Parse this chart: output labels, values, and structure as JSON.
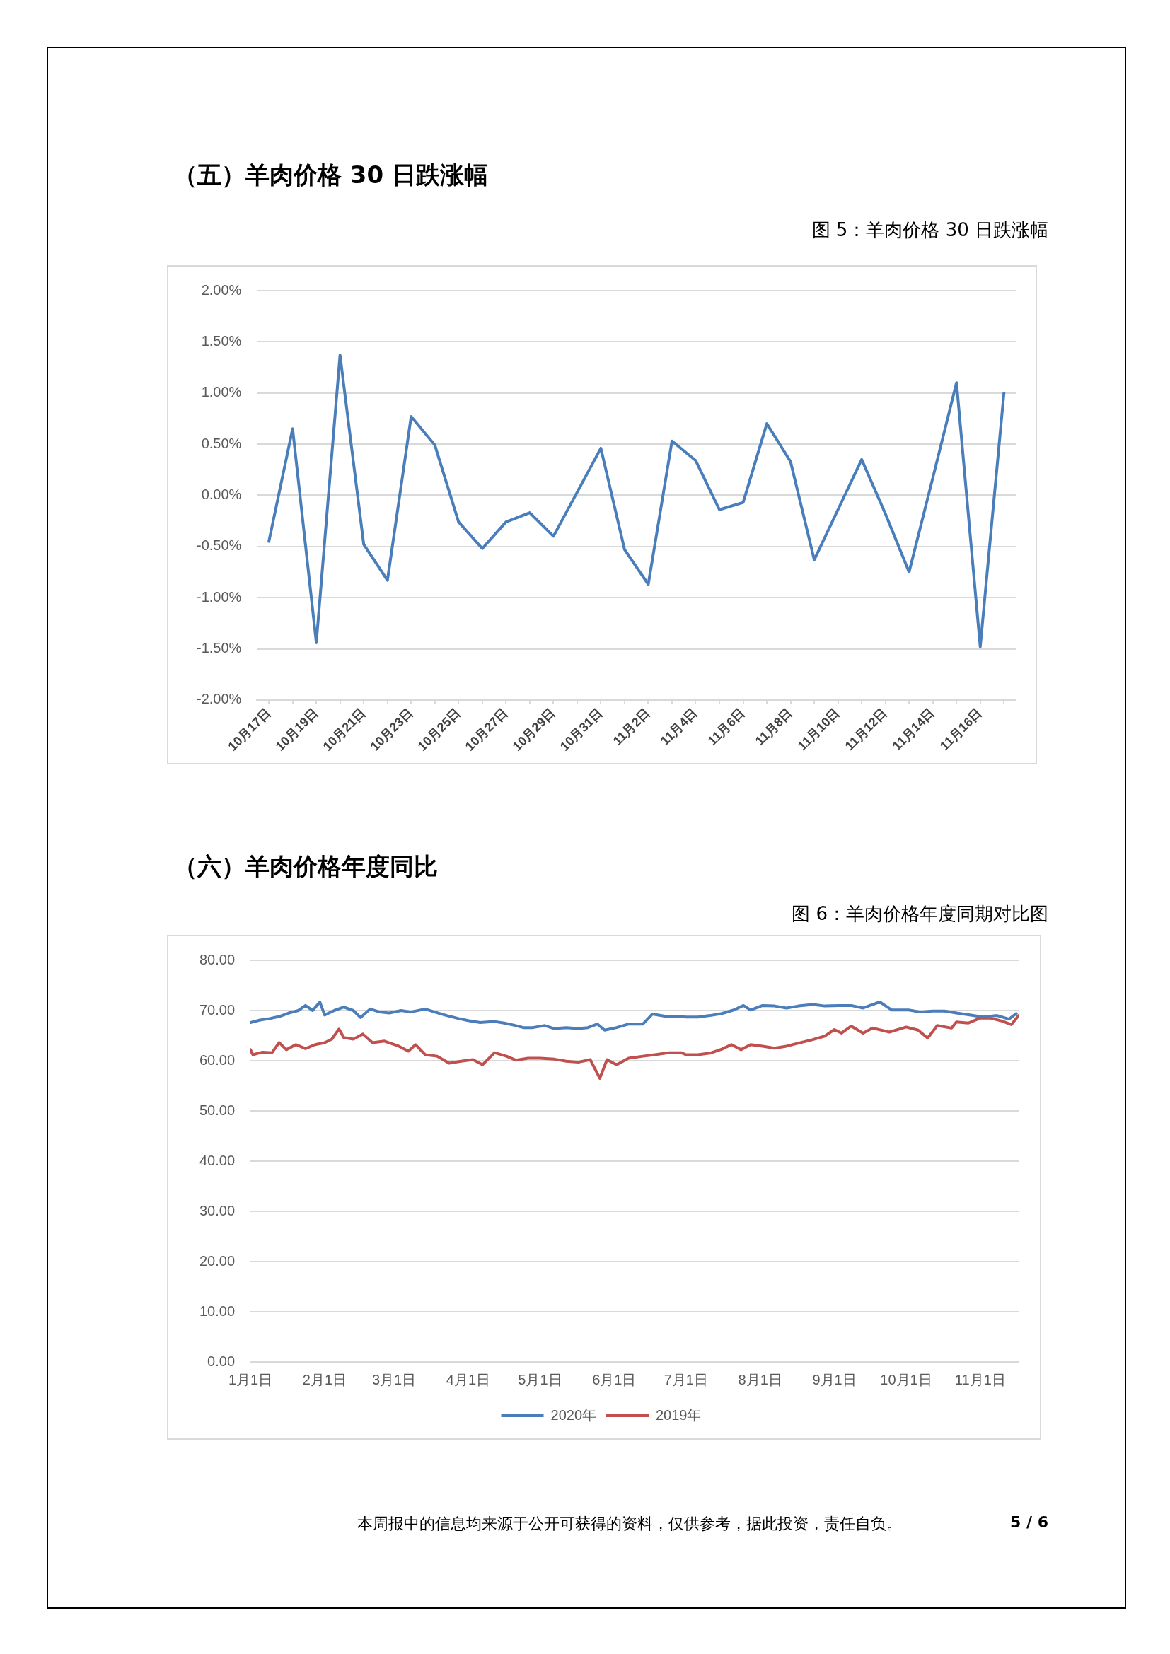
{
  "chart_data": [
    {
      "type": "line",
      "title": "（五）羊肉价格 30 日跌涨幅",
      "subtitle": "图 5：羊肉价格 30 日跌涨幅",
      "categories": [
        "10月17日",
        null,
        "10月19日",
        null,
        "10月21日",
        null,
        "10月23日",
        null,
        "10月25日",
        null,
        "10月27日",
        null,
        "10月29日",
        null,
        "10月31日",
        null,
        "11月2日",
        null,
        "11月4日",
        null,
        "11月6日",
        null,
        "11月8日",
        null,
        "11月10日",
        null,
        "11月12日",
        null,
        "11月14日",
        null,
        "11月16日",
        null
      ],
      "series": [
        {
          "color": "#4a7ebb",
          "values": [
            -0.45,
            0.65,
            -1.44,
            1.37,
            -0.48,
            -0.83,
            0.77,
            0.49,
            -0.26,
            -0.52,
            -0.26,
            -0.17,
            -0.4,
            0.03,
            0.46,
            -0.53,
            -0.87,
            0.53,
            0.34,
            -0.14,
            -0.07,
            0.7,
            0.33,
            -0.63,
            -0.14,
            0.35,
            -0.18,
            -0.75,
            0.17,
            1.1,
            -1.48,
            1.0
          ]
        }
      ],
      "ylim": [
        -2,
        2
      ],
      "yticks": [
        {
          "value": -2,
          "label": "-2.00%"
        },
        {
          "value": -1.5,
          "label": "-1.50%"
        },
        {
          "value": -1,
          "label": "-1.00%"
        },
        {
          "value": -0.5,
          "label": "-0.50%"
        },
        {
          "value": 0,
          "label": "0.00%"
        },
        {
          "value": 0.5,
          "label": "0.50%"
        },
        {
          "value": 1,
          "label": "1.00%"
        },
        {
          "value": 1.5,
          "label": "1.50%"
        },
        {
          "value": 2,
          "label": "2.00%"
        }
      ],
      "grid": "y",
      "legend": false,
      "marker": "none"
    },
    {
      "type": "line",
      "title": "（六）羊肉价格年度同比",
      "subtitle": "图 6：羊肉价格年度同期对比图",
      "series": [
        {
          "name": "2020年",
          "color": "#4a7dba",
          "x": [
            "--01-01",
            "--01-05",
            "--01-09",
            "--01-13",
            "--01-17",
            "--01-21",
            "--01-24",
            "--01-27",
            "--01-30",
            "--02-01",
            "--02-05",
            "--02-09",
            "--02-13",
            "--02-16",
            "--02-20",
            "--02-24",
            "--02-28",
            "--03-04",
            "--03-08",
            "--03-14",
            "--03-18",
            "--03-23",
            "--03-28",
            "--04-01",
            "--04-06",
            "--04-12",
            "--04-16",
            "--04-20",
            "--04-24",
            "--04-28",
            "--05-03",
            "--05-07",
            "--05-12",
            "--05-17",
            "--05-21",
            "--05-25",
            "--05-28",
            "--06-02",
            "--06-07",
            "--06-13",
            "--06-17",
            "--06-23",
            "--06-29",
            "--07-01",
            "--07-06",
            "--07-11",
            "--07-16",
            "--07-21",
            "--07-25",
            "--07-28",
            "--08-02",
            "--08-07",
            "--08-12",
            "--08-17",
            "--08-23",
            "--08-28",
            "--09-03",
            "--09-08",
            "--09-13",
            "--09-20",
            "--09-25",
            "--10-02",
            "--10-07",
            "--10-12",
            "--10-17",
            "--10-22",
            "--10-29",
            "--11-02",
            "--11-08",
            "--11-13",
            "--11-16"
          ],
          "values": [
            67.6,
            68.1,
            68.4,
            68.8,
            69.5,
            70.0,
            71.0,
            70.0,
            71.7,
            69.1,
            70.0,
            70.7,
            70.0,
            68.6,
            70.3,
            69.7,
            69.5,
            70.0,
            69.7,
            70.3,
            69.7,
            69.0,
            68.4,
            68.0,
            67.6,
            67.8,
            67.5,
            67.1,
            66.6,
            66.6,
            67.0,
            66.4,
            66.6,
            66.4,
            66.6,
            67.3,
            66.1,
            66.6,
            67.3,
            67.3,
            69.3,
            68.8,
            68.8,
            68.7,
            68.7,
            69.0,
            69.4,
            70.1,
            71.0,
            70.1,
            71.0,
            70.9,
            70.5,
            70.9,
            71.2,
            70.9,
            71.0,
            71.0,
            70.5,
            71.7,
            70.1,
            70.1,
            69.7,
            69.9,
            69.9,
            69.5,
            69.0,
            68.7,
            69.0,
            68.3,
            69.4
          ]
        },
        {
          "name": "2019年",
          "color": "#c0504d",
          "x": [
            "--01-01",
            "--01-02",
            "--01-06",
            "--01-10",
            "--01-13",
            "--01-16",
            "--01-20",
            "--01-24",
            "--01-28",
            "--02-01",
            "--02-04",
            "--02-07",
            "--02-09",
            "--02-13",
            "--02-17",
            "--02-21",
            "--02-26",
            "--03-03",
            "--03-07",
            "--03-10",
            "--03-14",
            "--03-19",
            "--03-24",
            "--03-29",
            "--04-03",
            "--04-07",
            "--04-12",
            "--04-17",
            "--04-21",
            "--04-26",
            "--05-01",
            "--05-07",
            "--05-12",
            "--05-17",
            "--05-22",
            "--05-26",
            "--05-29",
            "--06-02",
            "--06-07",
            "--06-13",
            "--06-18",
            "--06-24",
            "--06-29",
            "--07-01",
            "--07-06",
            "--07-11",
            "--07-16",
            "--07-20",
            "--07-24",
            "--07-28",
            "--08-02",
            "--08-07",
            "--08-12",
            "--08-17",
            "--08-23",
            "--08-28",
            "--09-01",
            "--09-04",
            "--09-08",
            "--09-13",
            "--09-17",
            "--09-24",
            "--10-01",
            "--10-06",
            "--10-10",
            "--10-14",
            "--10-20",
            "--10-22",
            "--10-27",
            "--11-01",
            "--11-05",
            "--11-10",
            "--11-14",
            "--11-17"
          ],
          "values": [
            62.2,
            61.2,
            61.7,
            61.6,
            63.6,
            62.2,
            63.2,
            62.4,
            63.2,
            63.6,
            64.3,
            66.3,
            64.6,
            64.3,
            65.3,
            63.6,
            63.9,
            62.9,
            61.9,
            63.2,
            61.2,
            60.9,
            59.5,
            59.9,
            60.2,
            59.2,
            61.6,
            60.9,
            60.1,
            60.5,
            60.5,
            60.3,
            59.9,
            59.7,
            60.2,
            56.5,
            60.2,
            59.2,
            60.5,
            60.9,
            61.2,
            61.6,
            61.6,
            61.2,
            61.2,
            61.5,
            62.3,
            63.2,
            62.2,
            63.2,
            62.9,
            62.5,
            62.9,
            63.5,
            64.2,
            64.9,
            66.2,
            65.5,
            66.9,
            65.5,
            66.5,
            65.7,
            66.7,
            66.1,
            64.5,
            67.0,
            66.5,
            67.7,
            67.5,
            68.5,
            68.5,
            67.9,
            67.2,
            69.0
          ]
        }
      ],
      "xlim": [
        "--01-01",
        "--11-17"
      ],
      "xticks": [
        {
          "value": "--01-01",
          "label": "1月1日"
        },
        {
          "value": "--02-01",
          "label": "2月1日"
        },
        {
          "value": "--03-01",
          "label": "3月1日"
        },
        {
          "value": "--04-01",
          "label": "4月1日"
        },
        {
          "value": "--05-01",
          "label": "5月1日"
        },
        {
          "value": "--06-01",
          "label": "6月1日"
        },
        {
          "value": "--07-01",
          "label": "7月1日"
        },
        {
          "value": "--08-01",
          "label": "8月1日"
        },
        {
          "value": "--09-01",
          "label": "9月1日"
        },
        {
          "value": "--10-01",
          "label": "10月1日"
        },
        {
          "value": "--11-01",
          "label": "11月1日"
        }
      ],
      "ylim": [
        0,
        80
      ],
      "yticks": [
        {
          "value": 0,
          "label": "0.00"
        },
        {
          "value": 10,
          "label": "10.00"
        },
        {
          "value": 20,
          "label": "20.00"
        },
        {
          "value": 30,
          "label": "30.00"
        },
        {
          "value": 40,
          "label": "40.00"
        },
        {
          "value": 50,
          "label": "50.00"
        },
        {
          "value": 60,
          "label": "60.00"
        },
        {
          "value": 70,
          "label": "70.00"
        },
        {
          "value": 80,
          "label": "80.00"
        }
      ],
      "grid": "y",
      "legend": "bottom",
      "marker": "none",
      "annotations": [
        "本周报中的信息均来源于公开可获得的资料，仅供参考，据此投资，责任自负。",
        "5 / 6"
      ]
    }
  ]
}
